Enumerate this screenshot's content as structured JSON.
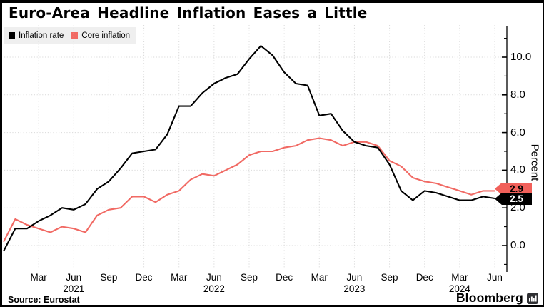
{
  "title": "Euro-Area Headline Inflation Eases a Little",
  "legend": [
    {
      "label": "Inflation rate",
      "color": "#000000"
    },
    {
      "label": "Core inflation",
      "color": "#f16a64"
    }
  ],
  "source_label": "Source: Eurostat",
  "brand": "Bloomberg",
  "colors": {
    "headline_line": "#000000",
    "core_line": "#f16a64",
    "grid": "#d9d9d9",
    "legend_bg": "#efefef",
    "flag_core_bg": "#f1605a",
    "flag_core_fg": "#000000",
    "flag_headline_bg": "#000000",
    "flag_headline_fg": "#ffffff"
  },
  "value_flags": [
    {
      "id": "core",
      "text": "2.9"
    },
    {
      "id": "headline",
      "text": "2.5"
    }
  ],
  "chart_data": {
    "type": "line",
    "title": "Euro-Area Headline Inflation Eases a Little",
    "frequency": "monthly",
    "x_start": "Dec 2020",
    "x_end": "Jun 2024",
    "ylabel": "Percent",
    "grid": "dotted",
    "legend_position": "top-left",
    "y_axis": {
      "label": "Percent",
      "major_ticks": [
        0,
        2,
        4,
        6,
        8,
        10
      ],
      "tick_labels": [
        "0.0",
        "2.0",
        "4.0",
        "6.0",
        "8.0",
        "10.0"
      ],
      "minor_ticks": [
        -1,
        1,
        3,
        5,
        7,
        9,
        11
      ],
      "drawn_range": [
        -1.4,
        11.6
      ]
    },
    "x_ticks": [
      {
        "i": 3,
        "label": "Mar"
      },
      {
        "i": 6,
        "label": "Jun",
        "year": "2021"
      },
      {
        "i": 9,
        "label": "Sep"
      },
      {
        "i": 12,
        "label": "Dec"
      },
      {
        "i": 15,
        "label": "Mar"
      },
      {
        "i": 18,
        "label": "Jun",
        "year": "2022"
      },
      {
        "i": 21,
        "label": "Sep"
      },
      {
        "i": 24,
        "label": "Dec"
      },
      {
        "i": 27,
        "label": "Mar"
      },
      {
        "i": 30,
        "label": "Jun",
        "year": "2023"
      },
      {
        "i": 33,
        "label": "Sep"
      },
      {
        "i": 36,
        "label": "Dec"
      },
      {
        "i": 39,
        "label": "Mar",
        "year": "2024"
      },
      {
        "i": 42,
        "label": "Jun"
      }
    ],
    "series": [
      {
        "name": "Inflation rate",
        "color": "#000000",
        "end_label": "2.5",
        "values": [
          -0.3,
          0.9,
          0.9,
          1.3,
          1.6,
          2.0,
          1.9,
          2.2,
          3.0,
          3.4,
          4.1,
          4.9,
          5.0,
          5.1,
          5.9,
          7.4,
          7.4,
          8.1,
          8.6,
          8.9,
          9.1,
          9.9,
          10.6,
          10.1,
          9.2,
          8.6,
          8.5,
          6.9,
          7.0,
          6.1,
          5.5,
          5.3,
          5.2,
          4.3,
          2.9,
          2.4,
          2.9,
          2.8,
          2.6,
          2.4,
          2.4,
          2.6,
          2.5
        ]
      },
      {
        "name": "Core inflation",
        "color": "#f16a64",
        "end_label": "2.9",
        "values": [
          0.2,
          1.4,
          1.1,
          0.9,
          0.7,
          1.0,
          0.9,
          0.7,
          1.6,
          1.9,
          2.0,
          2.6,
          2.6,
          2.3,
          2.7,
          2.9,
          3.5,
          3.8,
          3.7,
          4.0,
          4.3,
          4.8,
          5.0,
          5.0,
          5.2,
          5.3,
          5.6,
          5.7,
          5.6,
          5.3,
          5.5,
          5.5,
          5.3,
          4.5,
          4.2,
          3.6,
          3.4,
          3.3,
          3.1,
          2.9,
          2.7,
          2.9,
          2.9
        ]
      }
    ]
  }
}
